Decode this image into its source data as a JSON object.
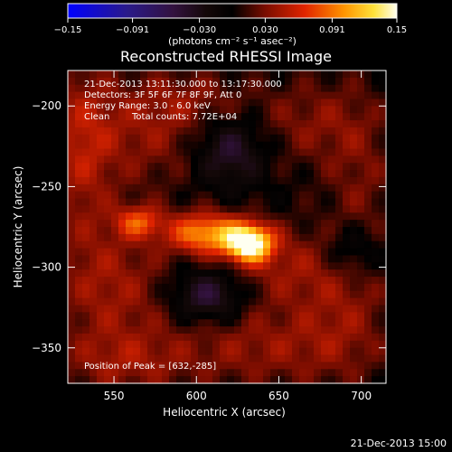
{
  "chart_data": {
    "type": "heatmap",
    "title": "Reconstructed RHESSI Image",
    "xlabel": "Heliocentric X (arcsec)",
    "ylabel": "Heliocentric Y (arcsec)",
    "xlim": [
      522,
      715
    ],
    "ylim": [
      -372,
      -178
    ],
    "x_ticks": [
      550,
      600,
      650,
      700
    ],
    "y_ticks": [
      -200,
      -250,
      -300,
      -350
    ],
    "colorbar": {
      "min": -0.15,
      "max": 0.15,
      "tick_values": [
        -0.15,
        -0.091,
        -0.03,
        0.03,
        0.091,
        0.15
      ],
      "tick_labels": [
        "-0.15",
        "-0.091",
        "-0.030",
        "0.030",
        "0.091",
        "0.15"
      ],
      "unit_label": "(photons cm⁻² s⁻¹ asec⁻²)"
    },
    "annotations": {
      "time_range": "21-Dec-2013 13:11:30.000 to 13:17:30.000",
      "detectors": "Detectors: 3F 5F 6F 7F 8F 9F, Att 0",
      "energy_range": "Energy Range: 3.0 - 6.0 keV",
      "clean": "Clean",
      "total_counts": "Total counts: 7.72E+04",
      "peak_position": "Position of Peak = [632,-285]"
    },
    "peak": [
      632,
      -285
    ],
    "peak_value": 0.15,
    "sources": [
      {
        "x": 632,
        "y": -285,
        "value": 0.15,
        "sx": 10,
        "sy": 8
      },
      {
        "x": 606,
        "y": -279,
        "value": 0.1,
        "sx": 16,
        "sy": 9
      },
      {
        "x": 565,
        "y": -272,
        "value": 0.065,
        "sx": 10,
        "sy": 7
      },
      {
        "x": 548,
        "y": -312,
        "value": 0.04,
        "sx": 26,
        "sy": 30
      },
      {
        "x": 530,
        "y": -225,
        "value": 0.04,
        "sx": 14,
        "sy": 40
      },
      {
        "x": 570,
        "y": -215,
        "value": 0.035,
        "sx": 30,
        "sy": 25
      },
      {
        "x": 655,
        "y": -300,
        "value": 0.035,
        "sx": 25,
        "sy": 18
      },
      {
        "x": 670,
        "y": -210,
        "value": 0.03,
        "sx": 25,
        "sy": 20
      },
      {
        "x": 640,
        "y": -350,
        "value": 0.035,
        "sx": 40,
        "sy": 18
      },
      {
        "x": 555,
        "y": -360,
        "value": 0.03,
        "sx": 30,
        "sy": 14
      },
      {
        "x": 700,
        "y": -250,
        "value": 0.025,
        "sx": 15,
        "sy": 40
      },
      {
        "x": 690,
        "y": -330,
        "value": 0.025,
        "sx": 20,
        "sy": 30
      },
      {
        "x": 600,
        "y": -195,
        "value": 0.02,
        "sx": 25,
        "sy": 12
      }
    ],
    "negative_regions": [
      {
        "x": 607,
        "y": -318,
        "value": -0.055,
        "sx": 15,
        "sy": 11
      },
      {
        "x": 620,
        "y": -228,
        "value": -0.05,
        "sx": 15,
        "sy": 15
      },
      {
        "x": 695,
        "y": -290,
        "value": -0.04,
        "sx": 12,
        "sy": 12
      }
    ]
  },
  "footer": {
    "date": "21-Dec-2013 15:00"
  }
}
